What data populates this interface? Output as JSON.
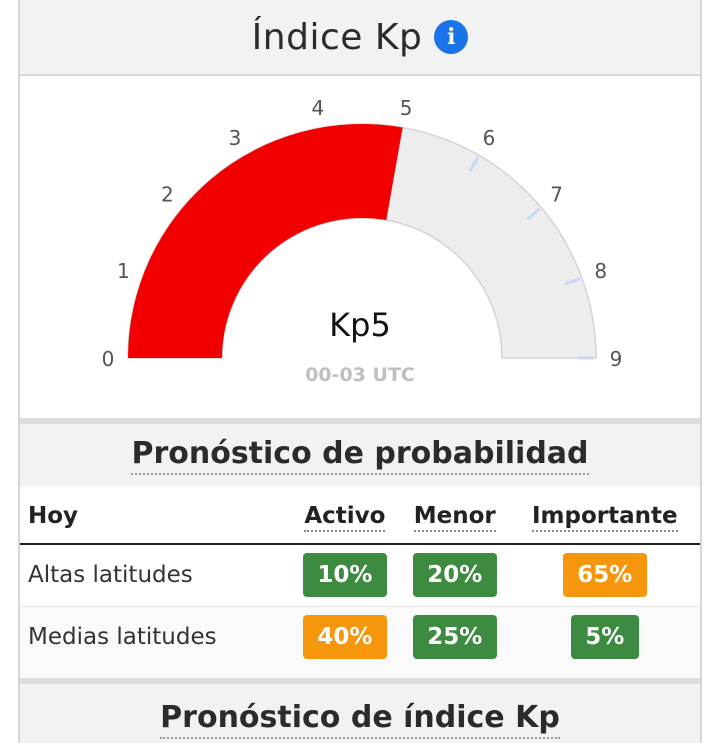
{
  "header": {
    "title": "Índice Kp",
    "info_icon": "info-icon"
  },
  "gauge": {
    "value": 5,
    "min": 0,
    "max": 9,
    "ticks": [
      "0",
      "1",
      "2",
      "3",
      "4",
      "5",
      "6",
      "7",
      "8",
      "9"
    ],
    "value_label": "Kp5",
    "time_label": "00-03 UTC",
    "fill_color": "#f20000",
    "track_color": "#ededed",
    "tick_color": "#c6d8f2"
  },
  "forecast": {
    "title": "Pronóstico de probabilidad",
    "columns": [
      "Hoy",
      "Activo",
      "Menor",
      "Importante"
    ],
    "rows": [
      {
        "label": "Altas latitudes",
        "cells": [
          {
            "value": "10%",
            "color": "#3d8b40"
          },
          {
            "value": "20%",
            "color": "#3d8b40"
          },
          {
            "value": "65%",
            "color": "#f5960d"
          }
        ]
      },
      {
        "label": "Medias latitudes",
        "cells": [
          {
            "value": "40%",
            "color": "#f5960d"
          },
          {
            "value": "25%",
            "color": "#3d8b40"
          },
          {
            "value": "5%",
            "color": "#3d8b40"
          }
        ]
      }
    ]
  },
  "kp_forecast": {
    "title": "Pronóstico de índice Kp"
  }
}
